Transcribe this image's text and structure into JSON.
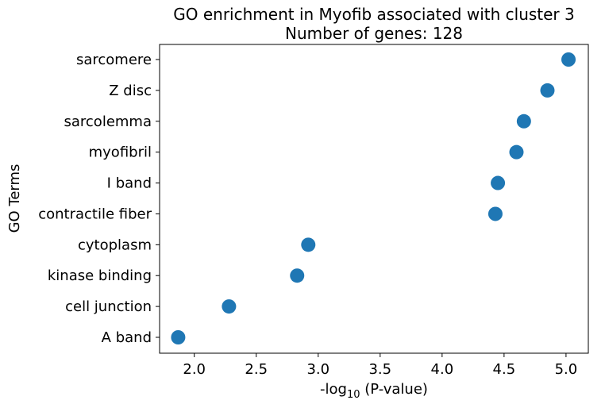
{
  "chart_data": {
    "type": "scatter",
    "title": "GO enrichment in Myofib associated with cluster 3",
    "subtitle": "Number of genes: 128",
    "xlabel": "-log",
    "xlabel_subscript": "10",
    "xlabel_suffix": " (P-value)",
    "ylabel": "GO Terms",
    "xlim": [
      1.72,
      5.18
    ],
    "xticks": [
      2.0,
      2.5,
      3.0,
      3.5,
      4.0,
      4.5,
      5.0
    ],
    "xtick_labels": [
      "2.0",
      "2.5",
      "3.0",
      "3.5",
      "4.0",
      "4.5",
      "5.0"
    ],
    "grid": false,
    "legend": "none",
    "marker_color": "#1f77b4",
    "categories": [
      "sarcomere",
      "Z disc",
      "sarcolemma",
      "myofibril",
      "I band",
      "contractile fiber",
      "cytoplasm",
      "kinase binding",
      "cell junction",
      "A band"
    ],
    "values": [
      5.02,
      4.85,
      4.66,
      4.6,
      4.45,
      4.43,
      2.92,
      2.83,
      2.28,
      1.87
    ]
  }
}
